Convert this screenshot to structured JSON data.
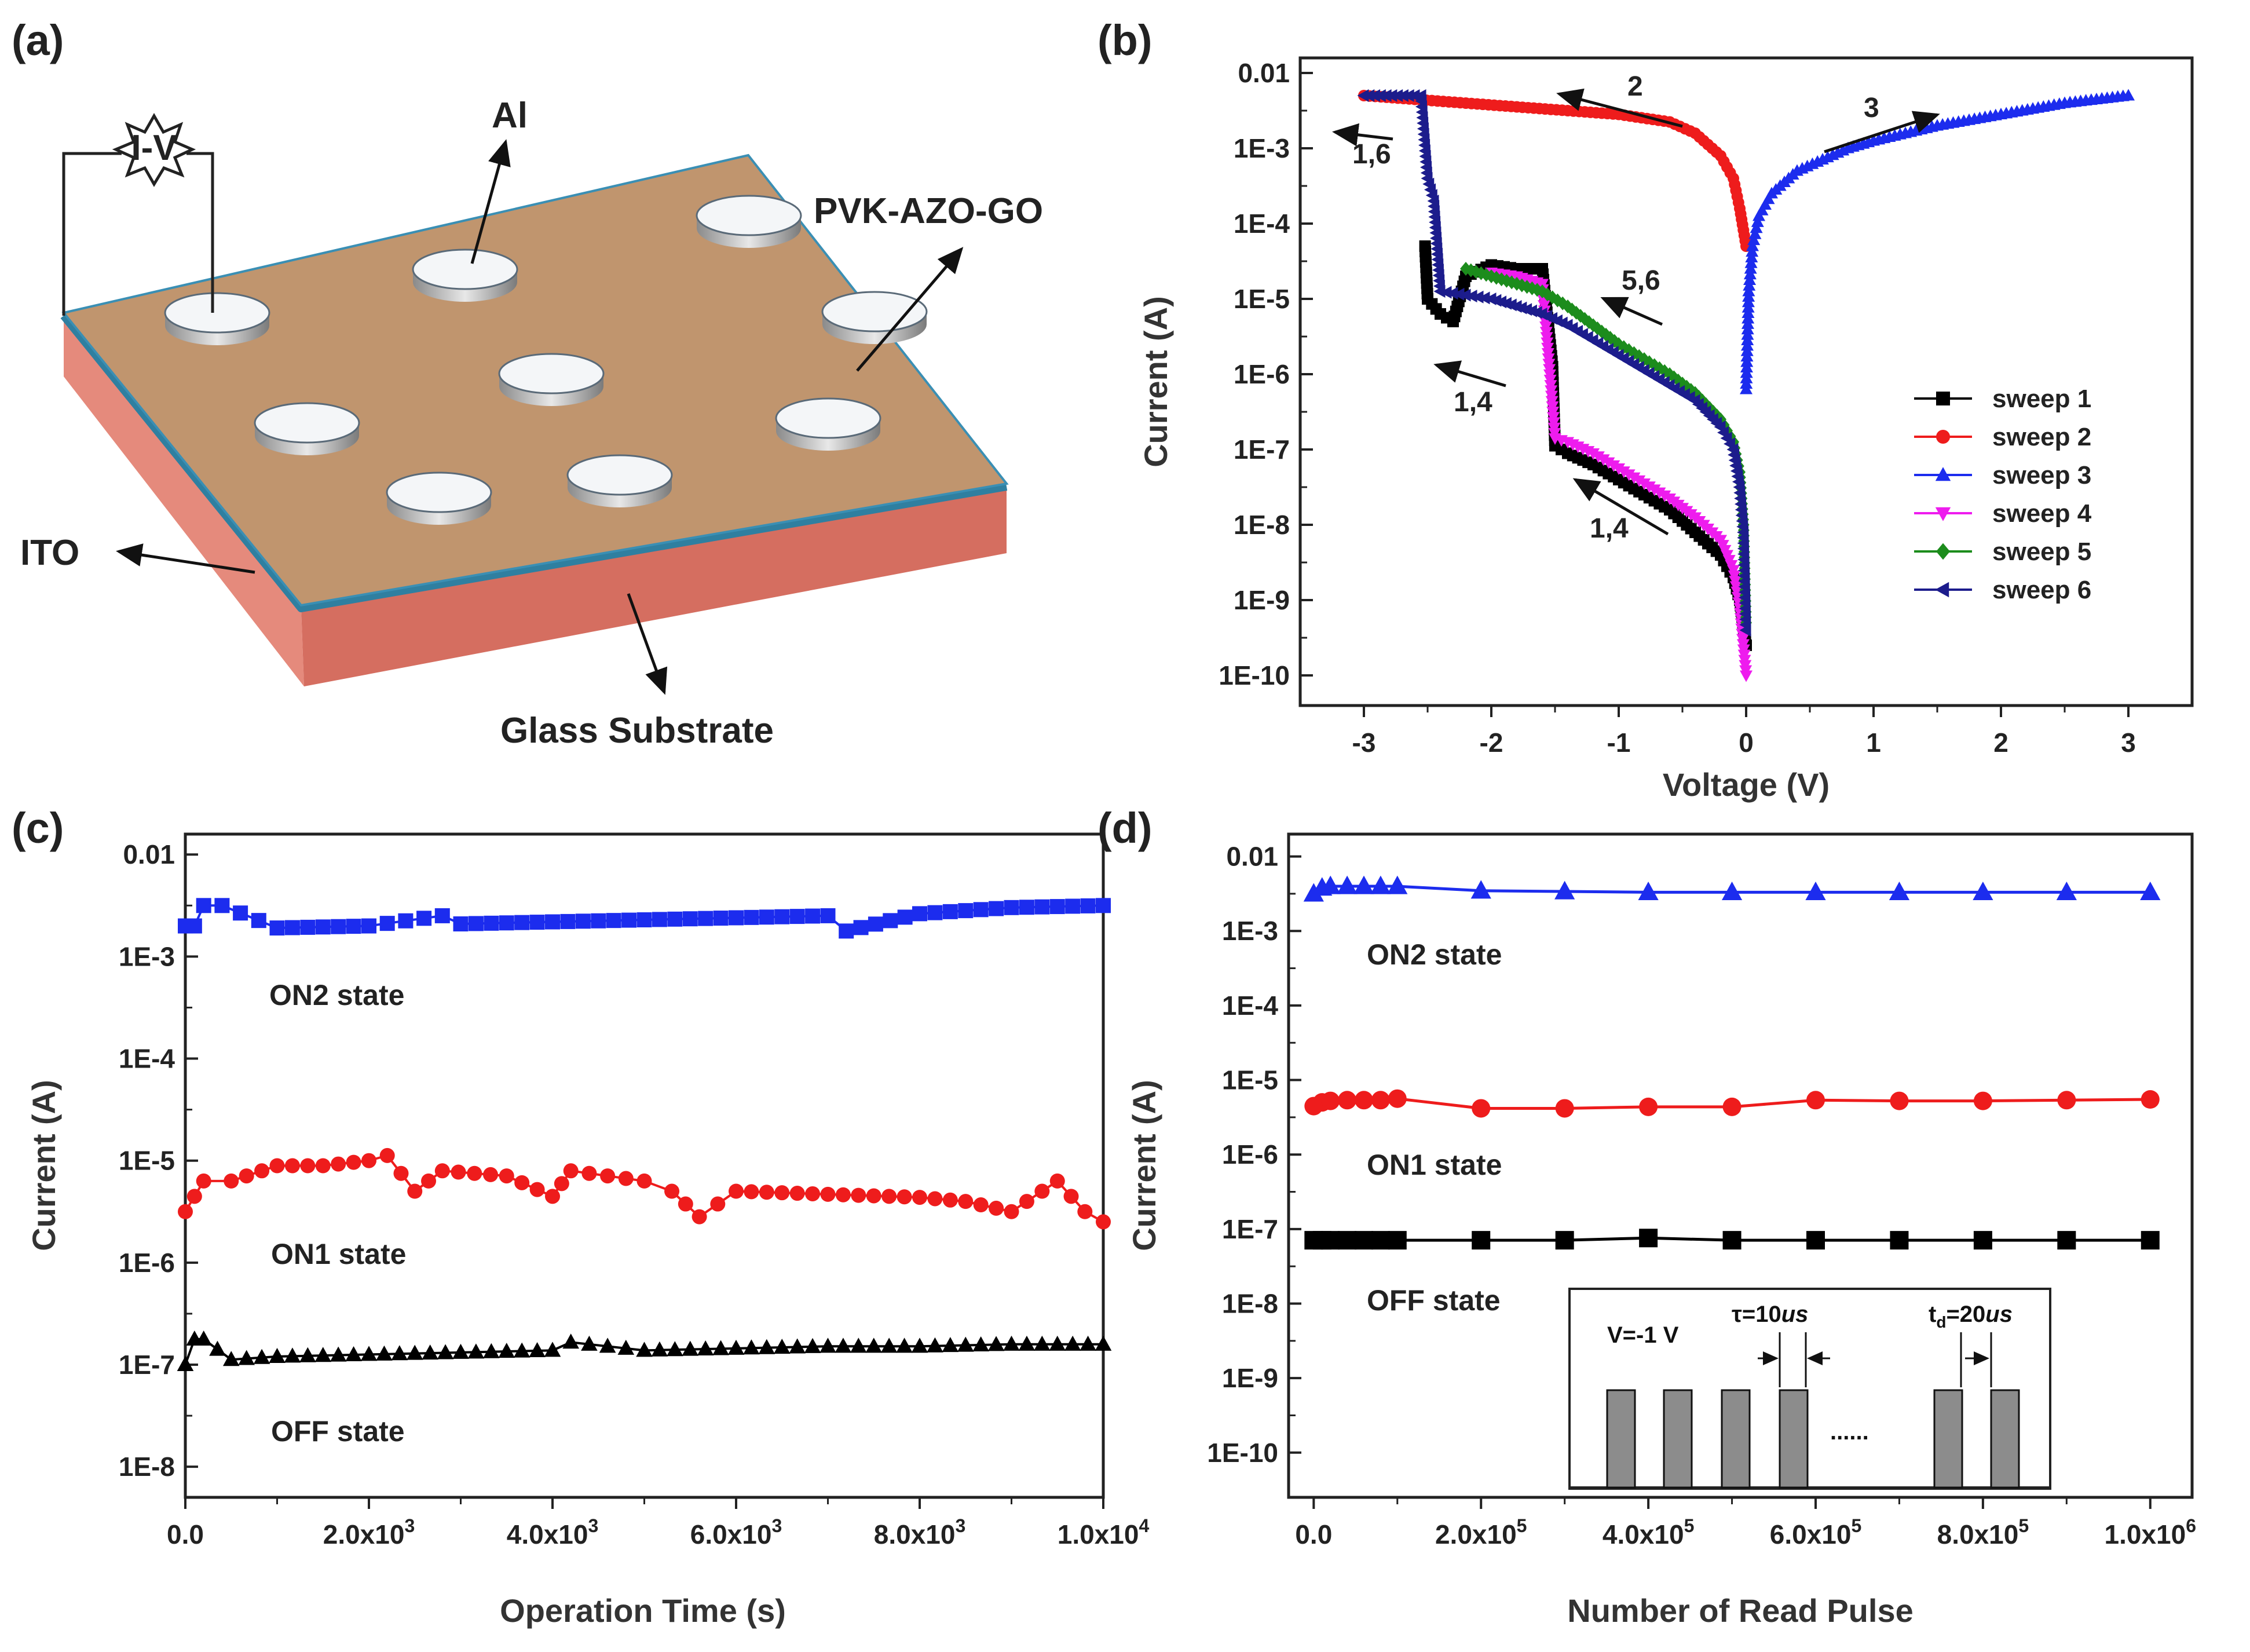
{
  "panel_a": {
    "letter": "(a)",
    "labels": {
      "iv": "I-V",
      "al": "Al",
      "film": "PVK-AZO-GO",
      "ito": "ITO",
      "substrate": "Glass Substrate"
    },
    "colors": {
      "film": "#C0956E",
      "ito": "#2F7FA0",
      "substrate": "#E38272",
      "electrode": "#F4F6F8"
    }
  },
  "chart_data": [
    {
      "id": "b",
      "panel": "(b)",
      "type": "scatter",
      "xlabel": "Voltage (V)",
      "ylabel": "Current (A)",
      "yscale": "log",
      "xlim": [
        -3.5,
        3.5
      ],
      "ylim_exp": [
        -10.4,
        -1.8
      ],
      "x_ticks": [
        -3,
        -2,
        -1,
        0,
        1,
        2,
        3
      ],
      "y_ticks": [
        {
          "exp": -2,
          "label": "0.01"
        },
        {
          "exp": -3,
          "label": "1E-3"
        },
        {
          "exp": -4,
          "label": "1E-4"
        },
        {
          "exp": -5,
          "label": "1E-5"
        },
        {
          "exp": -6,
          "label": "1E-6"
        },
        {
          "exp": -7,
          "label": "1E-7"
        },
        {
          "exp": -8,
          "label": "1E-8"
        },
        {
          "exp": -9,
          "label": "1E-9"
        },
        {
          "exp": -10,
          "label": "1E-10"
        }
      ],
      "series": [
        {
          "name": "sweep 1",
          "color": "#000000",
          "marker": "square",
          "x": [
            0,
            -0.05,
            -0.1,
            -0.2,
            -0.4,
            -0.6,
            -0.8,
            -1.0,
            -1.2,
            -1.4,
            -1.5,
            -1.52,
            -1.6,
            -1.8,
            -2.0,
            -2.2,
            -2.3,
            -2.4,
            -2.5,
            -2.52
          ],
          "y": [
            -9.6,
            -9.0,
            -8.7,
            -8.4,
            -8.1,
            -7.8,
            -7.6,
            -7.4,
            -7.2,
            -7.05,
            -6.95,
            -5.9,
            -4.6,
            -4.6,
            -4.55,
            -4.7,
            -5.3,
            -5.2,
            -5.0,
            -4.3
          ]
        },
        {
          "name": "sweep 2",
          "color": "#EE1C1C",
          "marker": "circle",
          "x": [
            -3.0,
            -2.6,
            -2.2,
            -1.8,
            -1.4,
            -1.0,
            -0.6,
            -0.4,
            -0.2,
            -0.1,
            -0.05,
            0
          ],
          "y": [
            -2.3,
            -2.35,
            -2.4,
            -2.45,
            -2.5,
            -2.55,
            -2.65,
            -2.8,
            -3.1,
            -3.4,
            -3.8,
            -4.3
          ]
        },
        {
          "name": "sweep 3",
          "color": "#1C2CEE",
          "marker": "triangle-up",
          "x": [
            0,
            0.02,
            0.05,
            0.1,
            0.2,
            0.4,
            0.6,
            0.8,
            1.0,
            1.5,
            2.0,
            2.5,
            3.0
          ],
          "y": [
            -6.2,
            -4.9,
            -4.3,
            -3.9,
            -3.6,
            -3.3,
            -3.15,
            -3.0,
            -2.9,
            -2.7,
            -2.55,
            -2.4,
            -2.3
          ]
        },
        {
          "name": "sweep 4",
          "color": "#EE1CEE",
          "marker": "triangle-down",
          "x": [
            0,
            -0.05,
            -0.1,
            -0.2,
            -0.4,
            -0.6,
            -0.8,
            -1.0,
            -1.2,
            -1.4,
            -1.5,
            -1.6,
            -1.8,
            -2.0
          ],
          "y": [
            -10.0,
            -9.1,
            -8.6,
            -8.2,
            -7.9,
            -7.65,
            -7.45,
            -7.25,
            -7.05,
            -6.9,
            -6.85,
            -4.8,
            -4.7,
            -4.65
          ]
        },
        {
          "name": "sweep 5",
          "color": "#1C8C1C",
          "marker": "diamond",
          "x": [
            0,
            -0.02,
            -0.05,
            -0.1,
            -0.2,
            -0.4,
            -0.6,
            -0.8,
            -1.0,
            -1.2,
            -1.4,
            -1.6,
            -1.8,
            -2.0,
            -2.2
          ],
          "y": [
            -9.3,
            -8.0,
            -7.3,
            -6.9,
            -6.6,
            -6.25,
            -6.0,
            -5.8,
            -5.6,
            -5.35,
            -5.1,
            -4.9,
            -4.8,
            -4.7,
            -4.6
          ]
        },
        {
          "name": "sweep 6",
          "color": "#1C1C8C",
          "marker": "triangle-left",
          "x": [
            0,
            -0.02,
            -0.05,
            -0.1,
            -0.2,
            -0.4,
            -0.6,
            -0.8,
            -1.0,
            -1.2,
            -1.4,
            -1.6,
            -1.8,
            -2.0,
            -2.2,
            -2.4,
            -2.45,
            -2.5,
            -2.55,
            -2.6,
            -3.0
          ],
          "y": [
            -9.4,
            -8.1,
            -7.5,
            -7.0,
            -6.7,
            -6.35,
            -6.15,
            -5.95,
            -5.75,
            -5.55,
            -5.35,
            -5.2,
            -5.1,
            -5.0,
            -4.95,
            -4.9,
            -3.7,
            -3.4,
            -2.3,
            -2.3,
            -2.3
          ]
        }
      ],
      "annotations": [
        "2",
        "3",
        "1,6",
        "5,6",
        "1,4",
        "1,4"
      ]
    },
    {
      "id": "c",
      "panel": "(c)",
      "type": "scatter",
      "xlabel": "Operation Time (s)",
      "ylabel": "Current (A)",
      "yscale": "log",
      "xlim": [
        0,
        10000
      ],
      "ylim_exp": [
        -8.3,
        -1.8
      ],
      "x_ticks": [
        {
          "value": 0,
          "label": "0.0"
        },
        {
          "value": 2000,
          "label": "2.0x10",
          "sup": "3"
        },
        {
          "value": 4000,
          "label": "4.0x10",
          "sup": "3"
        },
        {
          "value": 6000,
          "label": "6.0x10",
          "sup": "3"
        },
        {
          "value": 8000,
          "label": "8.0x10",
          "sup": "3"
        },
        {
          "value": 10000,
          "label": "1.0x10",
          "sup": "4"
        }
      ],
      "y_ticks": [
        {
          "exp": -2,
          "label": "0.01"
        },
        {
          "exp": -3,
          "label": "1E-3"
        },
        {
          "exp": -4,
          "label": "1E-4"
        },
        {
          "exp": -5,
          "label": "1E-5"
        },
        {
          "exp": -6,
          "label": "1E-6"
        },
        {
          "exp": -7,
          "label": "1E-7"
        },
        {
          "exp": -8,
          "label": "1E-8"
        }
      ],
      "series": [
        {
          "name": "ON2 state",
          "color": "#1C2CEE",
          "marker": "square",
          "x": [
            0,
            100,
            200,
            400,
            1000,
            2000,
            2800,
            3000,
            4000,
            5000,
            6000,
            7000,
            7200,
            8000,
            9000,
            10000
          ],
          "y": [
            -2.7,
            -2.7,
            -2.5,
            -2.5,
            -2.72,
            -2.7,
            -2.6,
            -2.68,
            -2.66,
            -2.64,
            -2.62,
            -2.6,
            -2.75,
            -2.58,
            -2.52,
            -2.5
          ]
        },
        {
          "name": "ON1 state",
          "color": "#EE1C1C",
          "marker": "circle",
          "x": [
            0,
            200,
            500,
            1000,
            1500,
            2000,
            2200,
            2500,
            2800,
            3500,
            4000,
            4200,
            5000,
            5300,
            5600,
            6000,
            7000,
            8000,
            8500,
            9000,
            9500,
            9800,
            10000
          ],
          "y": [
            -5.5,
            -5.2,
            -5.2,
            -5.05,
            -5.05,
            -5.0,
            -4.95,
            -5.3,
            -5.1,
            -5.15,
            -5.35,
            -5.1,
            -5.2,
            -5.3,
            -5.55,
            -5.3,
            -5.33,
            -5.36,
            -5.4,
            -5.5,
            -5.2,
            -5.5,
            -5.6
          ]
        },
        {
          "name": "OFF state",
          "color": "#000000",
          "marker": "triangle-up",
          "x": [
            0,
            100,
            200,
            500,
            1000,
            2000,
            3000,
            4000,
            4200,
            5000,
            6000,
            7000,
            8000,
            9000,
            10000
          ],
          "y": [
            -7.0,
            -6.75,
            -6.75,
            -6.95,
            -6.92,
            -6.9,
            -6.88,
            -6.86,
            -6.78,
            -6.86,
            -6.84,
            -6.82,
            -6.82,
            -6.8,
            -6.8
          ]
        }
      ],
      "state_labels": [
        "ON2 state",
        "ON1 state",
        "OFF state"
      ]
    },
    {
      "id": "d",
      "panel": "(d)",
      "type": "line",
      "xlabel": "Number of Read Pulse",
      "ylabel": "Current (A)",
      "yscale": "log",
      "xlim": [
        -30000,
        1050000
      ],
      "ylim_exp": [
        -10.6,
        -1.7
      ],
      "x_ticks": [
        {
          "value": 0,
          "label": "0.0"
        },
        {
          "value": 200000,
          "label": "2.0x10",
          "sup": "5"
        },
        {
          "value": 400000,
          "label": "4.0x10",
          "sup": "5"
        },
        {
          "value": 600000,
          "label": "6.0x10",
          "sup": "5"
        },
        {
          "value": 800000,
          "label": "8.0x10",
          "sup": "5"
        },
        {
          "value": 1000000,
          "label": "1.0x10",
          "sup": "6"
        }
      ],
      "y_ticks": [
        {
          "exp": -2,
          "label": "0.01"
        },
        {
          "exp": -3,
          "label": "1E-3"
        },
        {
          "exp": -4,
          "label": "1E-4"
        },
        {
          "exp": -5,
          "label": "1E-5"
        },
        {
          "exp": -6,
          "label": "1E-6"
        },
        {
          "exp": -7,
          "label": "1E-7"
        },
        {
          "exp": -8,
          "label": "1E-8"
        },
        {
          "exp": -9,
          "label": "1E-9"
        },
        {
          "exp": -10,
          "label": "1E-10"
        }
      ],
      "series": [
        {
          "name": "ON2 state",
          "color": "#1C2CEE",
          "marker": "triangle-up",
          "x": [
            0,
            10000,
            20000,
            40000,
            60000,
            80000,
            100000,
            200000,
            300000,
            400000,
            500000,
            600000,
            700000,
            800000,
            900000,
            1000000
          ],
          "y": [
            -2.5,
            -2.42,
            -2.4,
            -2.4,
            -2.4,
            -2.4,
            -2.4,
            -2.46,
            -2.47,
            -2.48,
            -2.48,
            -2.48,
            -2.48,
            -2.48,
            -2.48,
            -2.48
          ]
        },
        {
          "name": "ON1 state",
          "color": "#EE1C1C",
          "marker": "circle",
          "x": [
            0,
            10000,
            20000,
            40000,
            60000,
            80000,
            100000,
            200000,
            300000,
            400000,
            500000,
            600000,
            700000,
            800000,
            900000,
            1000000
          ],
          "y": [
            -5.35,
            -5.3,
            -5.28,
            -5.27,
            -5.27,
            -5.27,
            -5.25,
            -5.38,
            -5.38,
            -5.36,
            -5.36,
            -5.27,
            -5.28,
            -5.28,
            -5.27,
            -5.26
          ]
        },
        {
          "name": "OFF state",
          "color": "#000000",
          "marker": "square",
          "x": [
            0,
            10000,
            20000,
            40000,
            60000,
            80000,
            100000,
            200000,
            300000,
            400000,
            500000,
            600000,
            700000,
            800000,
            900000,
            1000000
          ],
          "y": [
            -7.15,
            -7.15,
            -7.15,
            -7.15,
            -7.15,
            -7.15,
            -7.15,
            -7.15,
            -7.15,
            -7.12,
            -7.15,
            -7.15,
            -7.15,
            -7.15,
            -7.15,
            -7.15
          ]
        }
      ],
      "state_labels": [
        "ON2 state",
        "ON1 state",
        "OFF state"
      ],
      "inset": {
        "v_label": "V=-1 V",
        "tau_label": "τ=10",
        "tau_unit": "us",
        "td_label": "t",
        "td_sub": "d",
        "td_value": "=20",
        "td_unit": "us",
        "dots": "......"
      }
    }
  ]
}
